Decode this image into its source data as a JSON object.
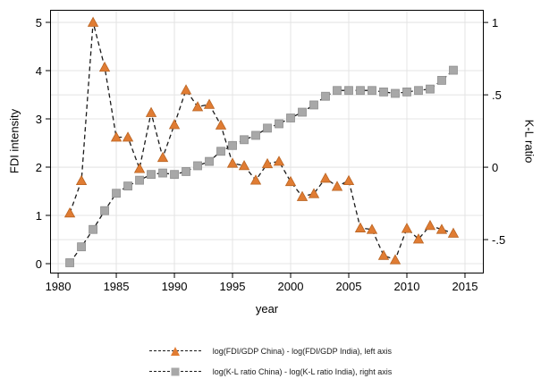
{
  "figure": {
    "background_color": "#ffffff",
    "frame_color": "#000000"
  },
  "chart_data": {
    "type": "line",
    "line_style": "dashed",
    "title": "",
    "xlabel": "year",
    "grid": true,
    "grid_color": "#e4e4e4",
    "legend_position": "bottom",
    "left_axis": {
      "title": "FDI intensity",
      "ticks": [
        "0",
        "1",
        "2",
        "3",
        "4",
        "5"
      ],
      "tick_values": [
        0,
        1,
        2,
        3,
        4,
        5
      ],
      "range": [
        -0.185,
        5.241
      ]
    },
    "right_axis": {
      "title": "K-L ratio",
      "ticks": [
        "-.5",
        "0",
        ".5",
        "1"
      ],
      "tick_values": [
        -0.5,
        0,
        0.5,
        1
      ],
      "range": [
        -0.728,
        1.081
      ]
    },
    "x_axis": {
      "ticks": [
        "1980",
        "1985",
        "1990",
        "1995",
        "2000",
        "2005",
        "2010",
        "2015"
      ],
      "tick_values": [
        1980,
        1985,
        1990,
        1995,
        2000,
        2005,
        2010,
        2015
      ],
      "range": [
        1979.38,
        2016.54
      ]
    },
    "x": [
      1981,
      1982,
      1983,
      1984,
      1985,
      1986,
      1987,
      1988,
      1989,
      1990,
      1991,
      1992,
      1993,
      1994,
      1995,
      1996,
      1997,
      1998,
      1999,
      2000,
      2001,
      2002,
      2003,
      2004,
      2005,
      2006,
      2007,
      2008,
      2009,
      2010,
      2011,
      2012,
      2013,
      2014
    ],
    "series": [
      {
        "id": "fdi",
        "name": "log(FDI/GDP China) - log(FDI/GDP India), left axis",
        "axis": "left",
        "marker": "triangle",
        "marker_color": "#E07C33",
        "marker_edge": "#B96423",
        "line_color": "#1a1a1a",
        "values": [
          1.05,
          1.72,
          5.0,
          4.07,
          2.62,
          2.62,
          1.97,
          3.13,
          2.2,
          2.88,
          3.6,
          3.25,
          3.3,
          2.87,
          2.08,
          2.03,
          1.73,
          2.07,
          2.12,
          1.7,
          1.39,
          1.45,
          1.77,
          1.6,
          1.72,
          0.74,
          0.71,
          0.17,
          0.08,
          0.73,
          0.51,
          0.79,
          0.71,
          0.63
        ]
      },
      {
        "id": "kl",
        "name": "log(K-L ratio China) - log(K-L ratio India), right axis",
        "axis": "right",
        "marker": "square",
        "marker_color": "#A8A8A8",
        "marker_edge": "#8F8F8F",
        "line_color": "#1a1a1a",
        "values": [
          -0.66,
          -0.55,
          -0.43,
          -0.3,
          -0.18,
          -0.13,
          -0.09,
          -0.05,
          -0.04,
          -0.05,
          -0.03,
          0.01,
          0.04,
          0.11,
          0.15,
          0.19,
          0.22,
          0.27,
          0.3,
          0.34,
          0.38,
          0.43,
          0.49,
          0.53,
          0.53,
          0.53,
          0.53,
          0.52,
          0.51,
          0.52,
          0.53,
          0.54,
          0.6,
          0.67
        ]
      }
    ]
  }
}
